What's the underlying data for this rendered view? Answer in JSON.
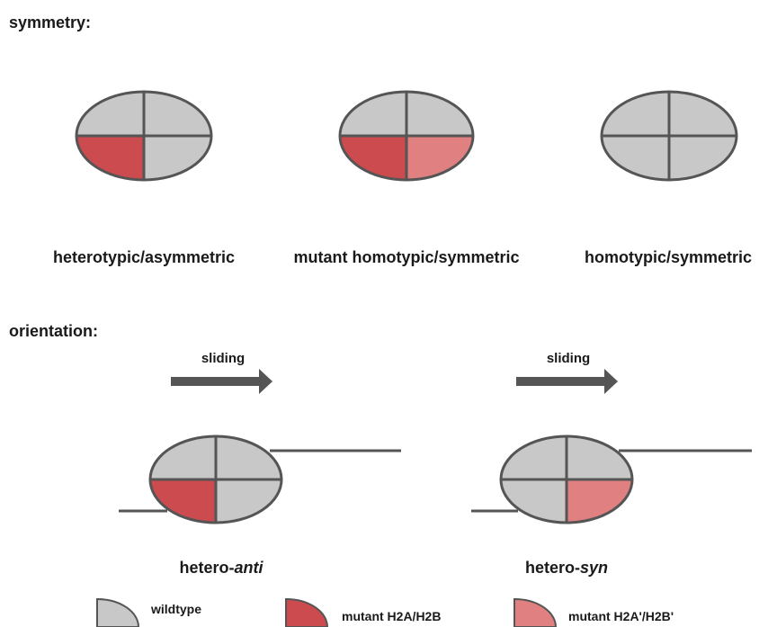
{
  "colors": {
    "wildtype": "#c8c8c8",
    "mutant": "#cc4b4f",
    "mutant_prime": "#e08081",
    "outline": "#555555",
    "arrow": "#555555"
  },
  "symmetry": {
    "heading": "symmetry:",
    "diagrams": [
      {
        "label": "heterotypic/asymmetric",
        "quadrants": [
          "wildtype",
          "wildtype",
          "mutant",
          "wildtype"
        ]
      },
      {
        "label": "mutant homotypic/symmetric",
        "quadrants": [
          "wildtype",
          "wildtype",
          "mutant",
          "mutant_prime"
        ]
      },
      {
        "label": "homotypic/symmetric",
        "quadrants": [
          "wildtype",
          "wildtype",
          "wildtype",
          "wildtype"
        ]
      }
    ]
  },
  "orientation": {
    "heading": "orientation:",
    "panels": [
      {
        "arrow_label": "sliding",
        "label_prefix": "hetero-",
        "label_italic": "anti",
        "quadrants": [
          "wildtype",
          "wildtype",
          "mutant",
          "wildtype"
        ]
      },
      {
        "arrow_label": "sliding",
        "label_prefix": "hetero-",
        "label_italic": "syn",
        "quadrants": [
          "wildtype",
          "wildtype",
          "wildtype",
          "mutant_prime"
        ]
      }
    ]
  },
  "legend": [
    {
      "label": "wildtype",
      "color_key": "wildtype"
    },
    {
      "label": "mutant H2A/H2B",
      "color_key": "mutant"
    },
    {
      "label": "mutant H2A'/H2B'",
      "color_key": "mutant_prime"
    }
  ]
}
